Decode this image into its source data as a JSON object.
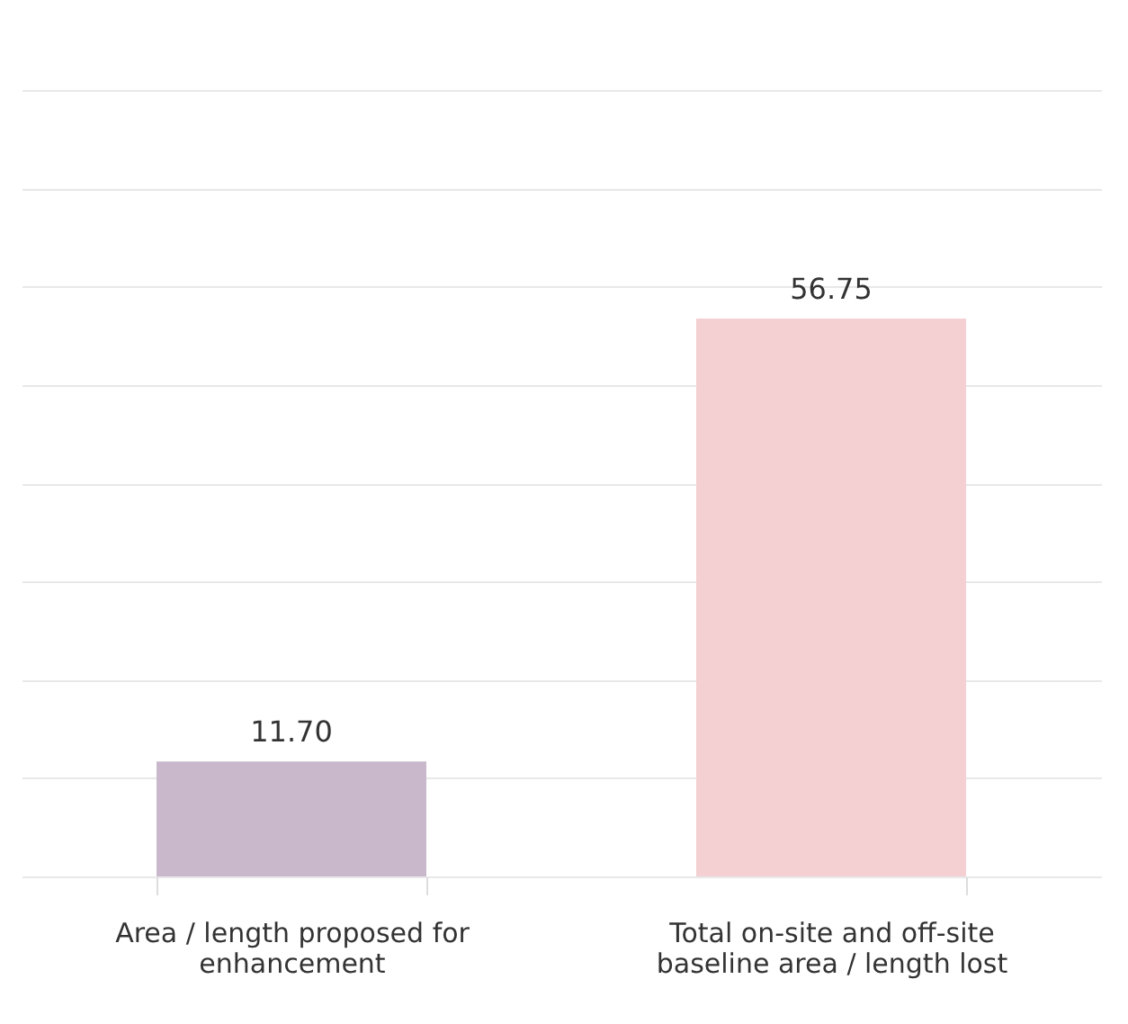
{
  "chart_data": {
    "type": "bar",
    "categories": [
      "Area / length proposed for enhancement",
      "Total on-site and off-site baseline area / length lost"
    ],
    "values": [
      11.7,
      56.75
    ],
    "value_labels": [
      "11.70",
      "56.75"
    ],
    "colors": [
      "#c9b8cc",
      "#f4d0d3"
    ],
    "ylim": [
      0,
      80
    ],
    "yticks": [
      {
        "value": 0,
        "label": null
      },
      {
        "value": 10,
        "label": null
      },
      {
        "value": 20,
        "label": null
      },
      {
        "value": 30,
        "label": null
      },
      {
        "value": 40,
        "label": null
      },
      {
        "value": 50,
        "label": null
      },
      {
        "value": 60,
        "label": null
      },
      {
        "value": 70,
        "label": null
      },
      {
        "value": 80,
        "label": null
      }
    ],
    "grid": "y",
    "tick_labels": "x"
  }
}
